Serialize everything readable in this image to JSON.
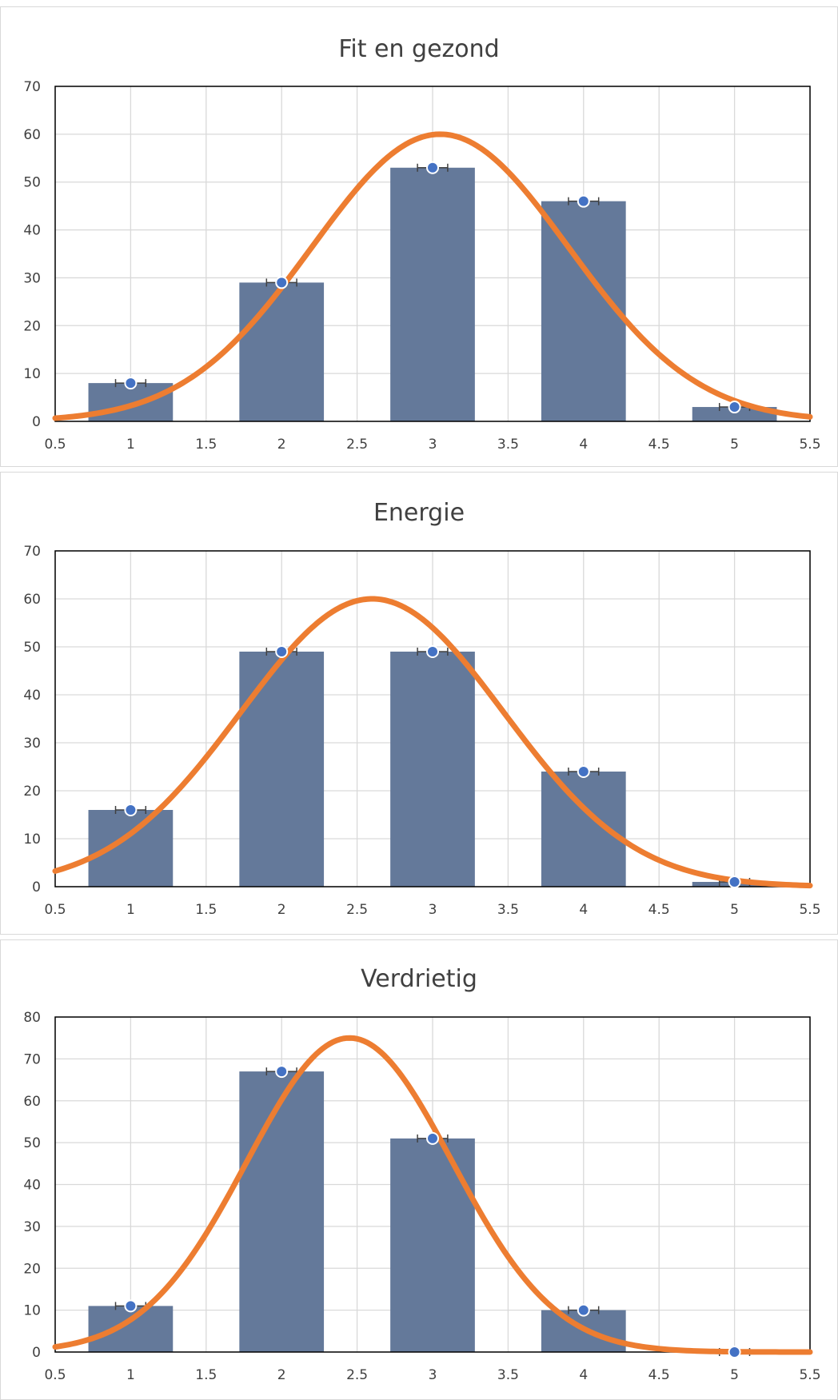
{
  "chart_data": [
    {
      "type": "bar",
      "title": "Fit en gezond",
      "xlim": [
        0.5,
        5.5
      ],
      "ylim": [
        0,
        70
      ],
      "x_ticks": [
        "0.5",
        "1",
        "1.5",
        "2",
        "2.5",
        "3",
        "3.5",
        "4",
        "4.5",
        "5",
        "5.5"
      ],
      "y_ticks": [
        "0",
        "10",
        "20",
        "30",
        "40",
        "50",
        "60",
        "70"
      ],
      "grid": true,
      "series": [
        {
          "type": "bar",
          "x": [
            1,
            2,
            3,
            4,
            5
          ],
          "values": [
            8,
            29,
            53,
            46,
            3
          ]
        },
        {
          "type": "scatter",
          "x": [
            1,
            2,
            3,
            4,
            5
          ],
          "values": [
            8,
            29,
            53,
            46,
            3
          ]
        },
        {
          "type": "line",
          "shape": "normal-curve",
          "mean": 3.05,
          "sd": 0.85,
          "peak": 60
        }
      ],
      "colors": {
        "bar": "#64799a",
        "point": "#4472c4",
        "curve": "#ed7d31",
        "grid": "#d9d9d9"
      }
    },
    {
      "type": "bar",
      "title": "Energie",
      "xlim": [
        0.5,
        5.5
      ],
      "ylim": [
        0,
        70
      ],
      "x_ticks": [
        "0.5",
        "1",
        "1.5",
        "2",
        "2.5",
        "3",
        "3.5",
        "4",
        "4.5",
        "5",
        "5.5"
      ],
      "y_ticks": [
        "0",
        "10",
        "20",
        "30",
        "40",
        "50",
        "60",
        "70"
      ],
      "grid": true,
      "series": [
        {
          "type": "bar",
          "x": [
            1,
            2,
            3,
            4,
            5
          ],
          "values": [
            16,
            49,
            49,
            24,
            1
          ]
        },
        {
          "type": "scatter",
          "x": [
            1,
            2,
            3,
            4,
            5
          ],
          "values": [
            16,
            49,
            49,
            24,
            1
          ]
        },
        {
          "type": "line",
          "shape": "normal-curve",
          "mean": 2.6,
          "sd": 0.87,
          "peak": 60
        }
      ],
      "colors": {
        "bar": "#64799a",
        "point": "#4472c4",
        "curve": "#ed7d31",
        "grid": "#d9d9d9"
      }
    },
    {
      "type": "bar",
      "title": "Verdrietig",
      "xlim": [
        0.5,
        5.5
      ],
      "ylim": [
        0,
        80
      ],
      "x_ticks": [
        "0.5",
        "1",
        "1.5",
        "2",
        "2.5",
        "3",
        "3.5",
        "4",
        "4.5",
        "5",
        "5.5"
      ],
      "y_ticks": [
        "0",
        "10",
        "20",
        "30",
        "40",
        "50",
        "60",
        "70",
        "80"
      ],
      "grid": true,
      "series": [
        {
          "type": "bar",
          "x": [
            1,
            2,
            3,
            4,
            5
          ],
          "values": [
            11,
            67,
            51,
            10,
            0
          ]
        },
        {
          "type": "scatter",
          "x": [
            1,
            2,
            3,
            4,
            5
          ],
          "values": [
            11,
            67,
            51,
            10,
            0
          ]
        },
        {
          "type": "line",
          "shape": "normal-curve",
          "mean": 2.45,
          "sd": 0.68,
          "peak": 75
        }
      ],
      "colors": {
        "bar": "#64799a",
        "point": "#4472c4",
        "curve": "#ed7d31",
        "grid": "#d9d9d9"
      }
    }
  ]
}
